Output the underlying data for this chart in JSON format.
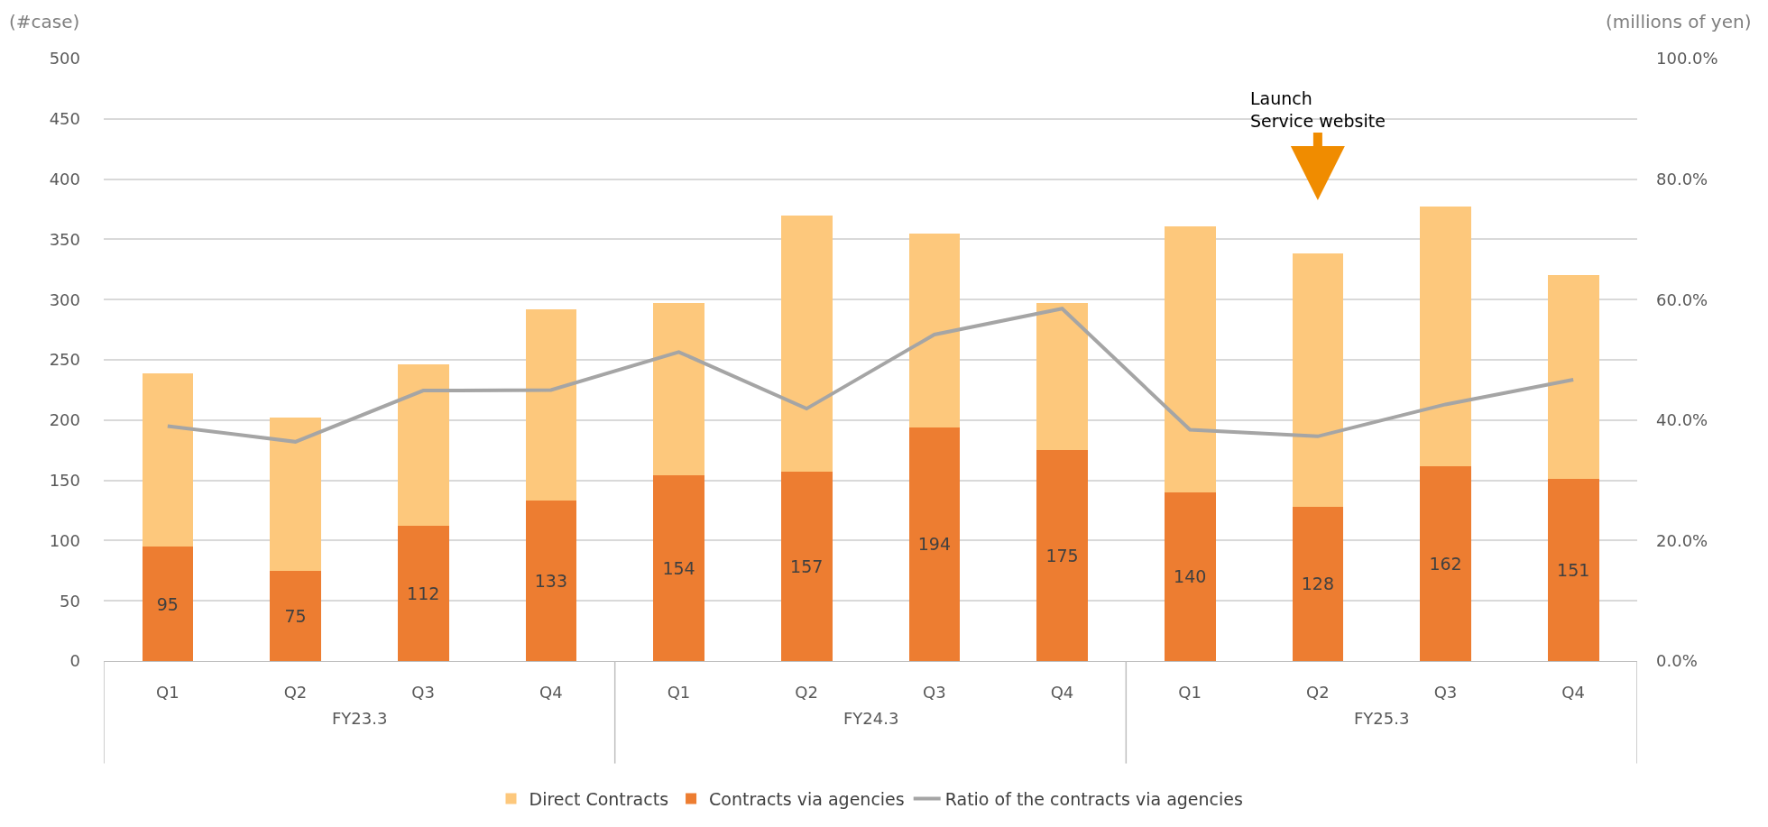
{
  "chart_data": {
    "type": "bar",
    "stacked": true,
    "categories": [
      "Q1",
      "Q2",
      "Q3",
      "Q4",
      "Q1",
      "Q2",
      "Q3",
      "Q4",
      "Q1",
      "Q2",
      "Q3",
      "Q4"
    ],
    "series": [
      {
        "name": "Contracts via agencies",
        "color": "#ed7d31",
        "values": [
          95,
          75,
          112,
          133,
          154,
          157,
          194,
          175,
          140,
          128,
          162,
          151
        ],
        "value_labels": [
          "95",
          "75",
          "112",
          "133",
          "154",
          "157",
          "194",
          "175",
          "140",
          "128",
          "162",
          "151"
        ]
      },
      {
        "name": "Direct Contracts",
        "color": "#fdc87c",
        "values": [
          144,
          127,
          134,
          159,
          143,
          213,
          161,
          122,
          221,
          210,
          215,
          169
        ]
      },
      {
        "name": "Ratio of the contracts via agencies",
        "type": "line",
        "axis": "y2",
        "color": "#a5a5a5",
        "marker": "none",
        "values": [
          39.0,
          36.4,
          44.9,
          45.0,
          51.3,
          41.9,
          54.2,
          58.5,
          38.4,
          37.3,
          42.6,
          46.7
        ]
      }
    ],
    "ylabel": "(#case)",
    "y2label": "(millions of yen)",
    "ylim": [
      0,
      500
    ],
    "yticks": [
      0,
      50,
      100,
      150,
      200,
      250,
      300,
      350,
      400,
      450,
      500
    ],
    "y2lim": [
      0,
      100
    ],
    "y2ticks": [
      {
        "value": 0,
        "label": "0.0%"
      },
      {
        "value": 20,
        "label": "20.0%"
      },
      {
        "value": 40,
        "label": "40.0%"
      },
      {
        "value": 60,
        "label": "60.0%"
      },
      {
        "value": 80,
        "label": "80.0%"
      },
      {
        "value": 100,
        "label": "100.0%"
      }
    ],
    "annotations": [
      "FY23.3",
      "FY24.3",
      "FY25.3",
      "Launch\nService website"
    ],
    "grid": "y",
    "legend": "bottom"
  }
}
